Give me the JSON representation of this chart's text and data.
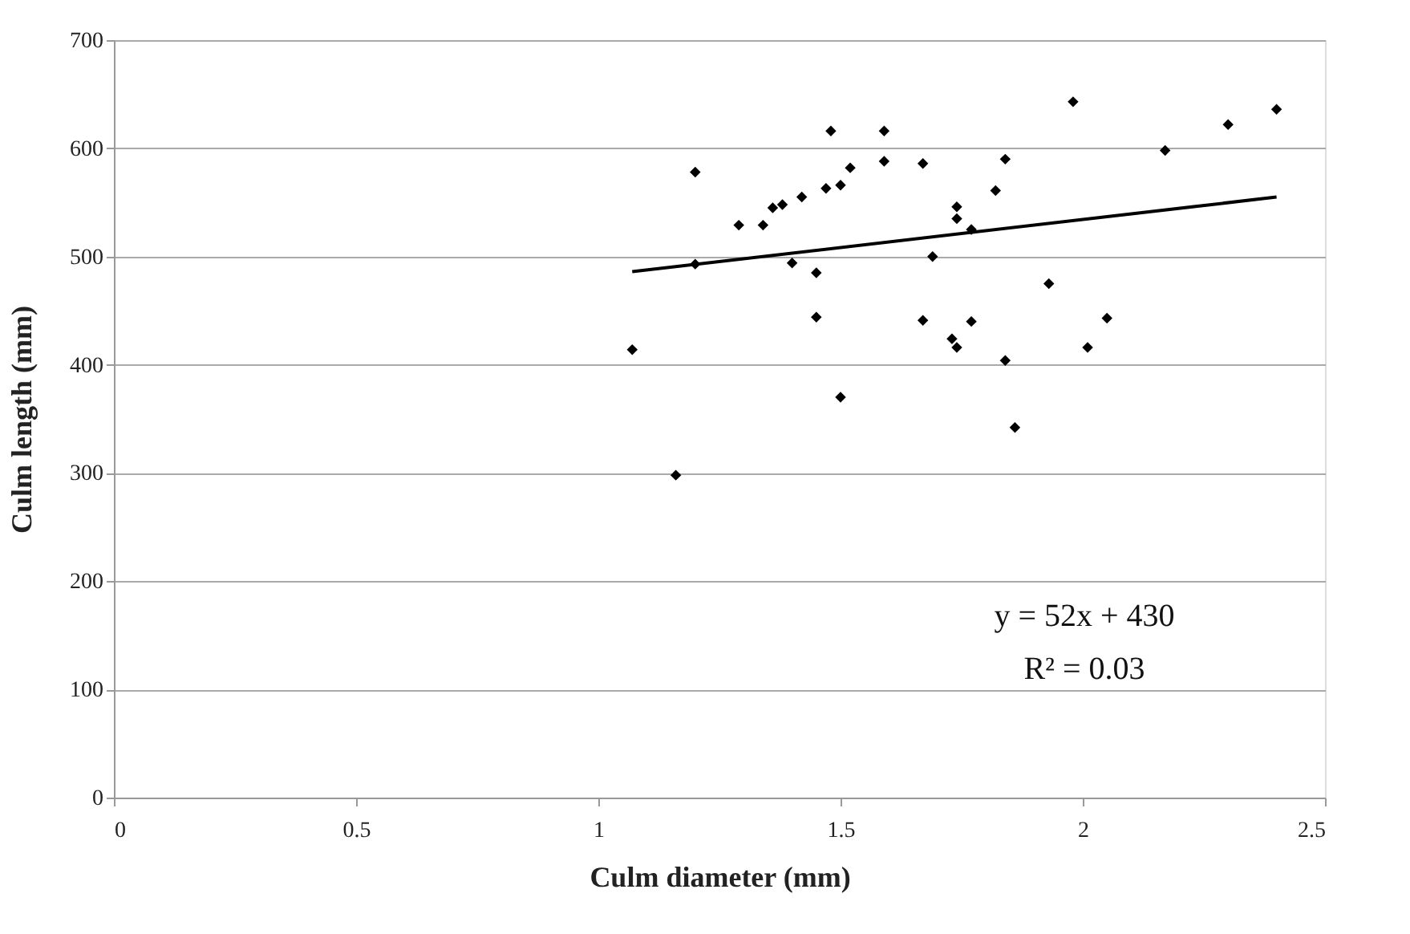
{
  "chart_data": {
    "type": "scatter",
    "xlabel": "Culm diameter (mm)",
    "ylabel": "Culm length (mm)",
    "xlim": [
      0,
      2.5
    ],
    "xticks": [
      0,
      0.5,
      1,
      1.5,
      2,
      2.5
    ],
    "ylim": [
      0,
      700
    ],
    "yticks": [
      0,
      100,
      200,
      300,
      400,
      500,
      600,
      700
    ],
    "grid": "y",
    "marker": "diamond",
    "annotations": [
      "y = 52x + 430",
      "R² = 0.03"
    ],
    "series": [
      {
        "color": "#000000",
        "x": [
          1.07,
          1.2,
          1.2,
          1.29,
          1.34,
          1.36,
          1.38,
          1.42,
          1.47,
          1.48,
          1.5,
          1.52,
          1.59,
          1.59,
          1.67,
          1.4,
          1.45,
          1.45,
          1.5,
          1.67,
          1.69,
          1.74,
          1.74,
          1.73,
          1.74,
          1.16,
          1.98,
          2.3,
          2.4,
          2.17,
          1.84,
          1.82,
          1.77,
          1.93,
          1.77,
          2.05,
          2.01,
          1.84,
          1.86
        ],
        "values": [
          414,
          578,
          493,
          529,
          529,
          545,
          548,
          555,
          563,
          616,
          566,
          582,
          616,
          588,
          586,
          494,
          485,
          444,
          370,
          441,
          500,
          546,
          535,
          424,
          416,
          298,
          643,
          622,
          636,
          598,
          590,
          561,
          525,
          475,
          440,
          443,
          416,
          404,
          342
        ]
      },
      {
        "type": "line",
        "color": "#000000",
        "x": [
          1.07,
          2.4
        ],
        "values": [
          486,
          555
        ],
        "marker": "none"
      }
    ]
  }
}
